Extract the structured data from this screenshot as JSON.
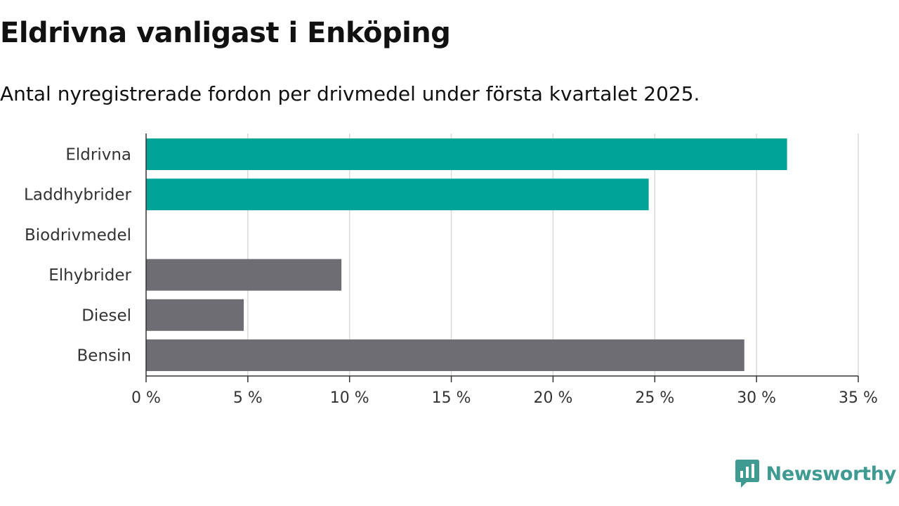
{
  "header": {
    "title": "Eldrivna vanligast i Enköping",
    "subtitle": "Antal nyregistrerade fordon per drivmedel under första kvartalet 2025."
  },
  "logo": {
    "text": "Newsworthy",
    "icon": "newsworthy-logo-icon",
    "color": "#3f9a92"
  },
  "chart_data": {
    "type": "bar",
    "orientation": "horizontal",
    "categories": [
      "Eldrivna",
      "Laddhybrider",
      "Biodrivmedel",
      "Elhybrider",
      "Diesel",
      "Bensin"
    ],
    "values": [
      31.5,
      24.7,
      0,
      9.6,
      4.8,
      29.4
    ],
    "colors": [
      "#00a398",
      "#00a398",
      "#00a398",
      "#6e6d73",
      "#6e6d73",
      "#6e6d73"
    ],
    "xlim": [
      0,
      35
    ],
    "xticks": [
      0,
      5,
      10,
      15,
      20,
      25,
      30,
      35
    ],
    "tick_suffix": " %",
    "grid": true,
    "grid_color": "#d9d9d9",
    "axis_color": "#333333"
  }
}
